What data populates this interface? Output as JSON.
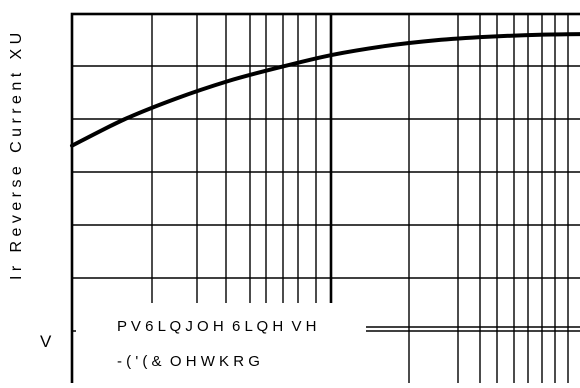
{
  "chart_data": {
    "type": "line",
    "ylabel": "I r   R e v e r s e   C u r r e n t   X U",
    "yaxis_text": "V",
    "legend": [
      "P V 6 L Q J O H  6 L Q H  V H",
      "- ( ' ( &  O H W K R G"
    ],
    "series": [
      {
        "x": [
          0.0,
          0.1,
          0.2,
          0.3,
          0.4,
          0.5,
          0.6,
          0.7,
          0.8,
          0.9,
          1.0
        ],
        "values": [
          0.68,
          0.755,
          0.815,
          0.865,
          0.905,
          0.94,
          0.965,
          0.982,
          0.992,
          0.998,
          1.0
        ]
      }
    ],
    "xlim": [
      0.0,
      1.0
    ],
    "ylim": [
      0.0,
      1.0
    ],
    "grid": true,
    "xscale": "log"
  }
}
